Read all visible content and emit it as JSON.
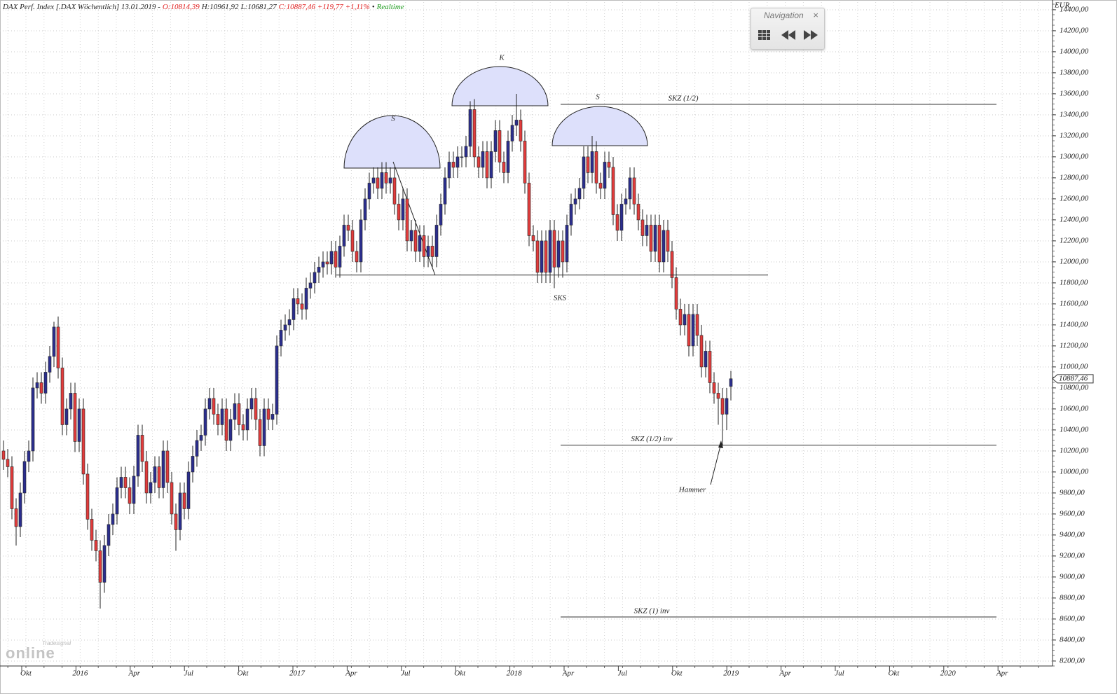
{
  "chart_data": {
    "type": "candlestick",
    "title_parts": [
      {
        "text": "DAX Perf. Index [.DAX Wöchentlich] 13.01.2019 -",
        "color": "#222222"
      },
      {
        "text": "O:10814,39",
        "color": "#e02020"
      },
      {
        "text": "H:10961,92",
        "color": "#222222"
      },
      {
        "text": "L:10681,27",
        "color": "#222222"
      },
      {
        "text": "C:10887,46",
        "color": "#e02020"
      },
      {
        "text": "+119,77",
        "color": "#e02020"
      },
      {
        "text": "+1,11%",
        "color": "#e02020"
      },
      {
        "text": "•",
        "color": "#222222"
      },
      {
        "text": "Realtime",
        "color": "#1a9a1a"
      }
    ],
    "unit": "EUR",
    "last_label": "10887,46",
    "up_color": "#2b2e8e",
    "down_color": "#e23c3c",
    "ylim": [
      8153,
      14473
    ],
    "yticks": [
      {
        "value": 8200,
        "label": "8200,00"
      },
      {
        "value": 8400,
        "label": "8400,00"
      },
      {
        "value": 8600,
        "label": "8600,00"
      },
      {
        "value": 8800,
        "label": "8800,00"
      },
      {
        "value": 9000,
        "label": "9000,00"
      },
      {
        "value": 9200,
        "label": "9200,00"
      },
      {
        "value": 9400,
        "label": "9400,00"
      },
      {
        "value": 9600,
        "label": "9600,00"
      },
      {
        "value": 9800,
        "label": "9800,00"
      },
      {
        "value": 10000,
        "label": "10000,00"
      },
      {
        "value": 10200,
        "label": "10200,00"
      },
      {
        "value": 10400,
        "label": "10400,00"
      },
      {
        "value": 10600,
        "label": "10600,00"
      },
      {
        "value": 10800,
        "label": "10800,00"
      },
      {
        "value": 11000,
        "label": "11000,00"
      },
      {
        "value": 11200,
        "label": "11200,00"
      },
      {
        "value": 11400,
        "label": "11400,00"
      },
      {
        "value": 11600,
        "label": "11600,00"
      },
      {
        "value": 11800,
        "label": "11800,00"
      },
      {
        "value": 12000,
        "label": "12000,00"
      },
      {
        "value": 12200,
        "label": "12200,00"
      },
      {
        "value": 12400,
        "label": "12400,00"
      },
      {
        "value": 12600,
        "label": "12600,00"
      },
      {
        "value": 12800,
        "label": "12800,00"
      },
      {
        "value": 13000,
        "label": "13000,00"
      },
      {
        "value": 13200,
        "label": "13200,00"
      },
      {
        "value": 13400,
        "label": "13400,00"
      },
      {
        "value": 13600,
        "label": "13600,00"
      },
      {
        "value": 13800,
        "label": "13800,00"
      },
      {
        "value": 14000,
        "label": "14000,00"
      },
      {
        "value": 14200,
        "label": "14200,00"
      },
      {
        "value": 14400,
        "label": "14400,00"
      }
    ],
    "xticks": [
      "Okt",
      "2016",
      "Apr",
      "Jul",
      "Okt",
      "2017",
      "Apr",
      "Jul",
      "Okt",
      "2018",
      "Apr",
      "Jul",
      "Okt",
      "2019",
      "Apr",
      "Jul",
      "Okt",
      "2020",
      "Apr"
    ],
    "grid": true,
    "open": [
      10200,
      10120,
      10050,
      9650,
      9480,
      9800,
      10100,
      10200,
      10800,
      10850,
      10750,
      10950,
      11100,
      11380,
      10990,
      10450,
      10600,
      10750,
      10290,
      10600,
      9980,
      9550,
      9350,
      9250,
      8950,
      9300,
      9500,
      9600,
      9850,
      9950,
      9850,
      9700,
      9960,
      10350,
      10100,
      9800,
      9900,
      10050,
      9850,
      10200,
      9900,
      9600,
      9450,
      9800,
      9650,
      10000,
      10150,
      10300,
      10350,
      10600,
      10700,
      10550,
      10450,
      10600,
      10300,
      10500,
      10650,
      10450,
      10400,
      10600,
      10700,
      10500,
      10250,
      10600,
      10500,
      10550,
      11200,
      11350,
      11400,
      11450,
      11650,
      11600,
      11550,
      11750,
      11800,
      11900,
      11950,
      12000,
      11980,
      12100,
      11950,
      12150,
      12350,
      12300,
      12100,
      12000,
      12400,
      12600,
      12750,
      12800,
      12700,
      12850,
      12750,
      12800,
      12550,
      12400,
      12600,
      12200,
      12300,
      12100,
      12250,
      12050,
      12150,
      12050,
      12350,
      12550,
      12800,
      12950,
      12900,
      13000,
      13000,
      13100,
      13450,
      13000,
      12900,
      13050,
      12800,
      13050,
      13250,
      12950,
      12850,
      13150,
      13300,
      13350,
      13150,
      12750,
      12250,
      12200,
      11900,
      12200,
      11900,
      12300,
      11950,
      12200,
      12000,
      12350,
      12550,
      12600,
      12700,
      13000,
      12850,
      13050,
      12750,
      12700,
      12950,
      12900,
      12450,
      12300,
      12550,
      12600,
      12800,
      12550,
      12400,
      12250,
      12350,
      12100,
      12350,
      12000,
      12300,
      12100,
      11850,
      11550,
      11400,
      11500,
      11200,
      11500,
      11300,
      11000,
      11150,
      10850,
      10750,
      10700,
      10550,
      10814.39
    ],
    "high": [
      10300,
      10220,
      10150,
      9750,
      9900,
      10200,
      10300,
      10900,
      10950,
      10950,
      11050,
      11200,
      11430,
      11480,
      11090,
      10700,
      10850,
      10850,
      10700,
      10700,
      10080,
      9650,
      9450,
      9350,
      9400,
      9600,
      9700,
      9950,
      10050,
      10050,
      9950,
      10060,
      10450,
      10450,
      10200,
      10000,
      10150,
      10150,
      10300,
      10300,
      10000,
      9700,
      9900,
      9900,
      10100,
      10250,
      10400,
      10450,
      10700,
      10800,
      10800,
      10650,
      10700,
      10700,
      10600,
      10750,
      10750,
      10550,
      10700,
      10800,
      10800,
      10600,
      10700,
      10700,
      10650,
      11300,
      11450,
      11500,
      11550,
      11750,
      11750,
      11700,
      11850,
      11900,
      12000,
      12050,
      12100,
      12100,
      12200,
      12200,
      12250,
      12450,
      12450,
      12400,
      12200,
      12500,
      12700,
      12850,
      12900,
      12900,
      12950,
      12950,
      12900,
      12900,
      12650,
      12700,
      12700,
      12400,
      12400,
      12350,
      12350,
      12250,
      12250,
      12450,
      12650,
      12900,
      13050,
      13050,
      13100,
      13100,
      13200,
      13530,
      13550,
      13100,
      13150,
      13150,
      13150,
      13350,
      13350,
      13050,
      13250,
      13400,
      13600,
      13450,
      13250,
      12850,
      12350,
      12300,
      12300,
      12300,
      12400,
      12400,
      12300,
      12300,
      12450,
      12650,
      12700,
      12800,
      13100,
      13100,
      13200,
      13150,
      12850,
      13050,
      13050,
      13000,
      12550,
      12650,
      12700,
      12900,
      12900,
      12650,
      12500,
      12450,
      12450,
      12450,
      12450,
      12400,
      12400,
      12200,
      11950,
      11650,
      11600,
      11600,
      11600,
      11600,
      11400,
      11250,
      11250,
      10950,
      10850,
      10800,
      10800,
      10961.92
    ],
    "low": [
      10020,
      9950,
      9550,
      9300,
      9380,
      9700,
      10000,
      10100,
      10700,
      10650,
      10650,
      10850,
      11000,
      10890,
      10350,
      10350,
      10500,
      10190,
      10190,
      9880,
      9450,
      9250,
      9150,
      8700,
      8850,
      9200,
      9400,
      9500,
      9750,
      9750,
      9600,
      9600,
      9860,
      10000,
      9700,
      9700,
      9800,
      9750,
      9750,
      9800,
      9500,
      9250,
      9350,
      9550,
      9550,
      9900,
      10050,
      10200,
      10250,
      10500,
      10450,
      10350,
      10350,
      10200,
      10200,
      10400,
      10350,
      10300,
      10300,
      10500,
      10400,
      10150,
      10150,
      10400,
      10400,
      10450,
      11100,
      11250,
      11300,
      11350,
      11500,
      11450,
      11450,
      11650,
      11700,
      11800,
      11850,
      11880,
      11880,
      11850,
      11850,
      12050,
      12200,
      12000,
      11900,
      11900,
      12300,
      12500,
      12650,
      12600,
      12600,
      12650,
      12650,
      12450,
      12300,
      12300,
      12100,
      12100,
      12000,
      12000,
      11950,
      11950,
      11950,
      11950,
      12250,
      12450,
      12700,
      12800,
      12800,
      12900,
      12900,
      13000,
      12900,
      12800,
      12800,
      12700,
      12700,
      12950,
      12850,
      12750,
      12750,
      13050,
      13200,
      13050,
      12650,
      12150,
      12100,
      11800,
      11800,
      11800,
      11800,
      11750,
      11850,
      11850,
      11900,
      12250,
      12450,
      12500,
      12600,
      12750,
      12750,
      12650,
      12600,
      12600,
      12800,
      12350,
      12200,
      12200,
      12450,
      12500,
      12450,
      12300,
      12150,
      12150,
      12000,
      12000,
      11900,
      11900,
      12000,
      11750,
      11450,
      11300,
      11300,
      11100,
      11100,
      11200,
      10900,
      10900,
      10750,
      10650,
      10450,
      10250,
      10400,
      10681.27
    ],
    "close": [
      10120,
      10050,
      9650,
      9480,
      9800,
      10100,
      10200,
      10800,
      10850,
      10750,
      10950,
      11100,
      11380,
      10990,
      10450,
      10600,
      10750,
      10290,
      10600,
      9980,
      9550,
      9350,
      9250,
      8950,
      9300,
      9500,
      9600,
      9850,
      9950,
      9850,
      9700,
      9960,
      10350,
      10100,
      9800,
      9900,
      10050,
      9850,
      10200,
      9900,
      9600,
      9450,
      9800,
      9650,
      10000,
      10150,
      10300,
      10350,
      10600,
      10700,
      10550,
      10450,
      10600,
      10300,
      10500,
      10650,
      10450,
      10400,
      10600,
      10700,
      10500,
      10250,
      10600,
      10500,
      10550,
      11200,
      11350,
      11400,
      11450,
      11650,
      11600,
      11550,
      11750,
      11800,
      11900,
      11950,
      12000,
      11980,
      12100,
      11950,
      12150,
      12350,
      12300,
      12100,
      12000,
      12400,
      12600,
      12750,
      12800,
      12700,
      12850,
      12750,
      12800,
      12550,
      12400,
      12600,
      12200,
      12300,
      12100,
      12250,
      12050,
      12150,
      12050,
      12350,
      12550,
      12800,
      12950,
      12900,
      13000,
      13000,
      13100,
      13450,
      13000,
      12900,
      13050,
      12800,
      13050,
      13250,
      12950,
      12850,
      13150,
      13300,
      13350,
      13150,
      12750,
      12250,
      12200,
      11900,
      12200,
      11900,
      12300,
      11950,
      12200,
      12000,
      12350,
      12550,
      12600,
      12700,
      13000,
      12850,
      13050,
      12750,
      12700,
      12950,
      12900,
      12450,
      12300,
      12550,
      12600,
      12800,
      12550,
      12400,
      12250,
      12350,
      12100,
      12350,
      12000,
      12300,
      12100,
      11850,
      11550,
      11400,
      11500,
      11200,
      11500,
      11300,
      11000,
      11150,
      10850,
      10750,
      10700,
      10550,
      10700,
      10887.46
    ],
    "hlines": [
      {
        "value": 11875
      },
      {
        "label": "SKZ (1/2)",
        "value": 13500
      },
      {
        "label": "SKZ (1/2) inv",
        "value": 10255
      },
      {
        "label": "SKZ (1) inv",
        "value": 8620
      }
    ],
    "annotations": [
      "S",
      "K",
      "S",
      "SKS",
      "Hammer"
    ]
  },
  "navigation": {
    "title": "Navigation"
  },
  "logo": {
    "brand": "Tradesignal",
    "name": "online"
  }
}
